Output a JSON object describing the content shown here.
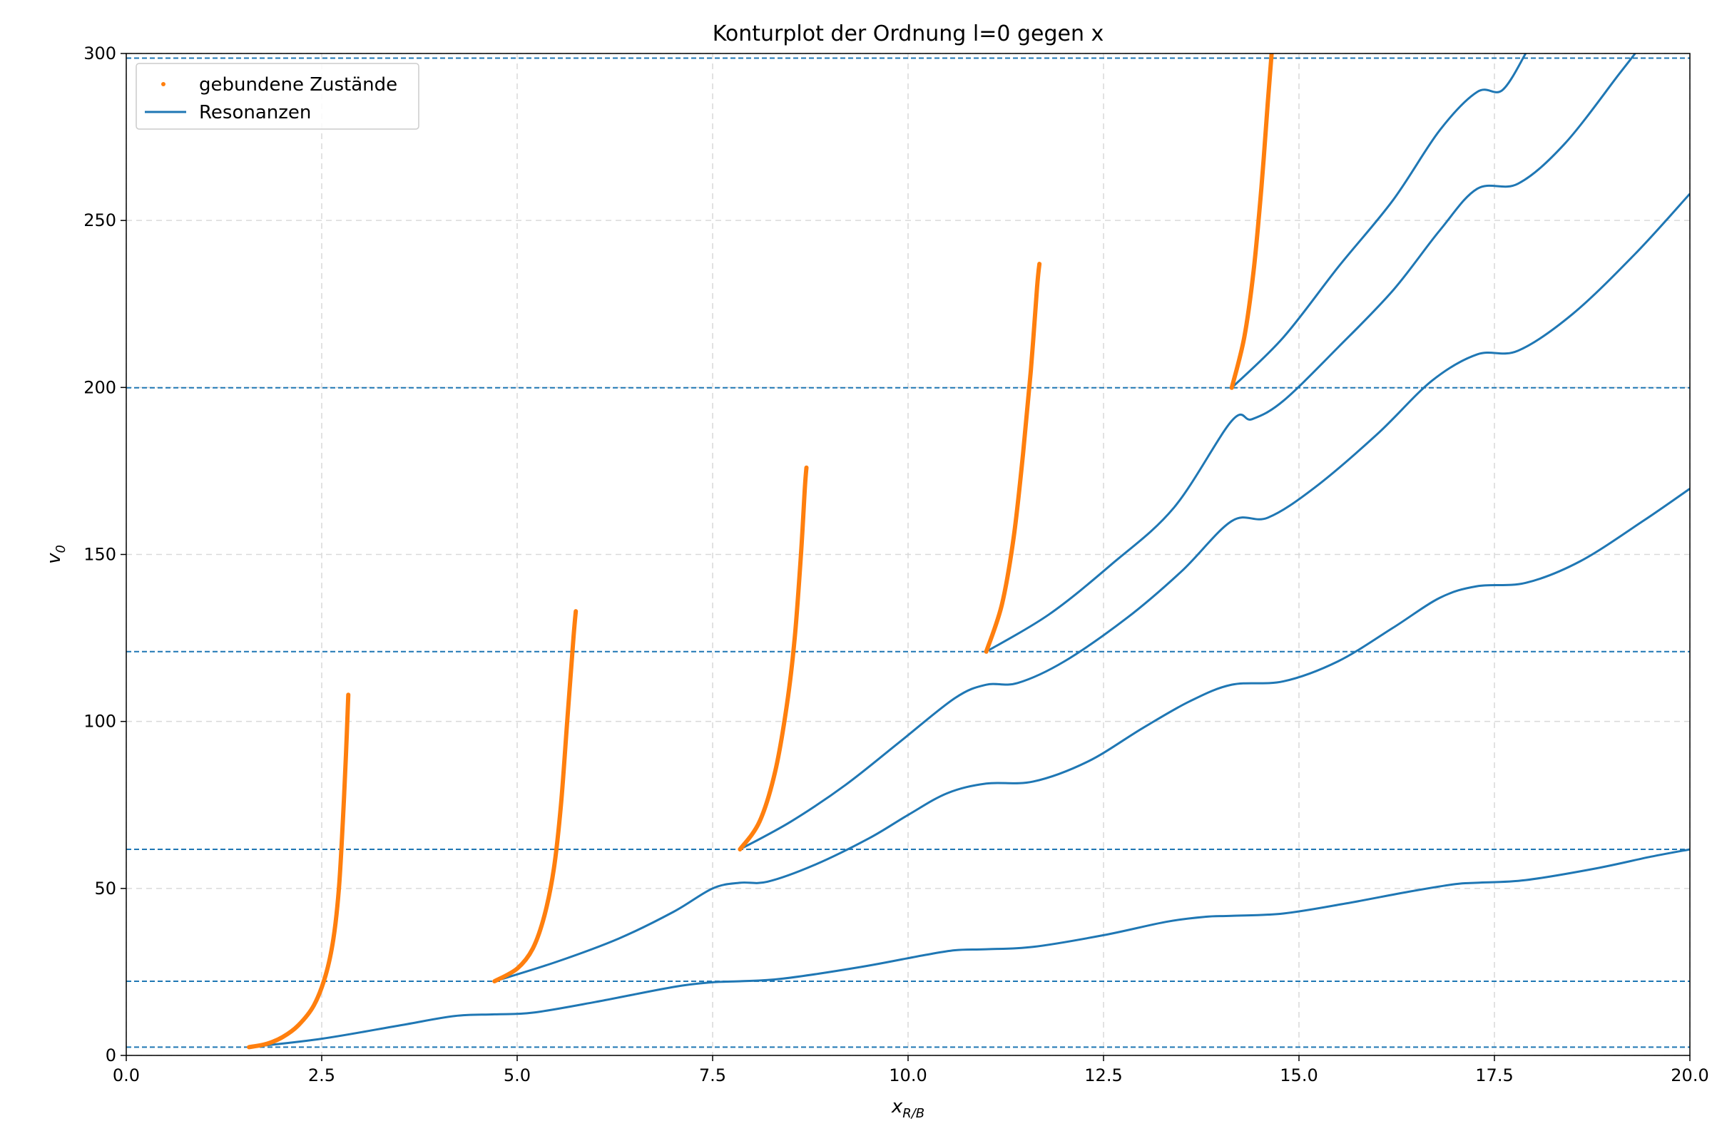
{
  "chart_data": {
    "type": "line",
    "title": "Konturplot der Ordnung l=0 gegen x",
    "xlabel": {
      "base": "x",
      "sub": "R/B"
    },
    "ylabel": {
      "base": "v",
      "sub": "0"
    },
    "xlim": [
      0,
      20
    ],
    "ylim": [
      0,
      300
    ],
    "xticks": [
      "0.0",
      "2.5",
      "5.0",
      "7.5",
      "10.0",
      "12.5",
      "15.0",
      "17.5",
      "20.0"
    ],
    "yticks": [
      "0",
      "50",
      "100",
      "150",
      "200",
      "250",
      "300"
    ],
    "grid": true,
    "legend_position": "top-left",
    "colors": {
      "bound": "#ff7f0e",
      "resonance": "#1f77b4",
      "grid": "#d9d9d9"
    },
    "legend": [
      {
        "label": "gebundene Zustände",
        "style": "marker"
      },
      {
        "label": "Resonanzen",
        "style": "line"
      }
    ],
    "thresholds": [
      2.47,
      22.2,
      61.7,
      120.9,
      199.9,
      298.6
    ],
    "bound_states": [
      {
        "name": "gebundene Zustände",
        "points": [
          [
            1.57,
            2.47
          ],
          [
            1.8,
            3.5
          ],
          [
            2.0,
            5.5
          ],
          [
            2.2,
            9
          ],
          [
            2.4,
            15
          ],
          [
            2.55,
            24
          ],
          [
            2.65,
            35
          ],
          [
            2.72,
            50
          ],
          [
            2.77,
            70
          ],
          [
            2.81,
            90
          ],
          [
            2.84,
            108
          ]
        ]
      },
      {
        "name": "gebundene Zustände",
        "points": [
          [
            4.71,
            22.2
          ],
          [
            5.0,
            26
          ],
          [
            5.2,
            32
          ],
          [
            5.35,
            42
          ],
          [
            5.47,
            56
          ],
          [
            5.56,
            75
          ],
          [
            5.64,
            100
          ],
          [
            5.72,
            125
          ],
          [
            5.75,
            133
          ]
        ]
      },
      {
        "name": "gebundene Zustände",
        "points": [
          [
            7.85,
            61.7
          ],
          [
            8.1,
            70
          ],
          [
            8.3,
            85
          ],
          [
            8.45,
            105
          ],
          [
            8.55,
            125
          ],
          [
            8.63,
            150
          ],
          [
            8.68,
            170
          ],
          [
            8.7,
            176
          ]
        ]
      },
      {
        "name": "gebundene Zustände",
        "points": [
          [
            11.0,
            120.9
          ],
          [
            11.2,
            135
          ],
          [
            11.35,
            155
          ],
          [
            11.47,
            180
          ],
          [
            11.57,
            205
          ],
          [
            11.65,
            230
          ],
          [
            11.68,
            237
          ]
        ]
      },
      {
        "name": "gebundene Zustände",
        "points": [
          [
            14.14,
            199.9
          ],
          [
            14.3,
            215
          ],
          [
            14.42,
            235
          ],
          [
            14.52,
            260
          ],
          [
            14.6,
            285
          ],
          [
            14.65,
            300
          ]
        ]
      }
    ],
    "resonances": [
      {
        "name": "Resonanzen",
        "points": [
          [
            1.57,
            2.47
          ],
          [
            2.5,
            5
          ],
          [
            3.5,
            9
          ],
          [
            4.2,
            11.8
          ],
          [
            4.71,
            12.3
          ],
          [
            5.2,
            12.8
          ],
          [
            6.0,
            16
          ],
          [
            7.0,
            20.5
          ],
          [
            7.5,
            21.9
          ],
          [
            7.85,
            22.2
          ],
          [
            8.4,
            23
          ],
          [
            9.4,
            26.5
          ],
          [
            10.2,
            30
          ],
          [
            10.6,
            31.5
          ],
          [
            11.0,
            31.8
          ],
          [
            11.6,
            32.5
          ],
          [
            12.5,
            36
          ],
          [
            13.3,
            40
          ],
          [
            13.8,
            41.5
          ],
          [
            14.14,
            41.8
          ],
          [
            14.8,
            42.5
          ],
          [
            15.6,
            45.5
          ],
          [
            16.4,
            49
          ],
          [
            17.0,
            51.3
          ],
          [
            17.28,
            51.7
          ],
          [
            17.9,
            52.5
          ],
          [
            18.8,
            56
          ],
          [
            19.5,
            59.5
          ],
          [
            20.0,
            61.7
          ]
        ]
      },
      {
        "name": "Resonanzen",
        "points": [
          [
            4.71,
            22.2
          ],
          [
            5.5,
            28
          ],
          [
            6.3,
            35
          ],
          [
            7.0,
            43
          ],
          [
            7.5,
            50
          ],
          [
            7.85,
            51.7
          ],
          [
            8.2,
            52
          ],
          [
            8.8,
            57
          ],
          [
            9.5,
            65
          ],
          [
            10.0,
            72
          ],
          [
            10.5,
            78.5
          ],
          [
            11.0,
            81.4
          ],
          [
            11.6,
            82
          ],
          [
            12.3,
            88
          ],
          [
            13.0,
            98
          ],
          [
            13.6,
            106
          ],
          [
            14.14,
            111
          ],
          [
            14.8,
            112
          ],
          [
            15.5,
            118
          ],
          [
            16.2,
            128
          ],
          [
            16.8,
            137
          ],
          [
            17.28,
            140.5
          ],
          [
            17.9,
            141.5
          ],
          [
            18.6,
            148
          ],
          [
            19.4,
            160
          ],
          [
            20.0,
            169.7
          ]
        ]
      },
      {
        "name": "Resonanzen",
        "points": [
          [
            7.85,
            61.7
          ],
          [
            8.5,
            70
          ],
          [
            9.2,
            81
          ],
          [
            9.9,
            94
          ],
          [
            10.6,
            107
          ],
          [
            11.0,
            111
          ],
          [
            11.4,
            111.5
          ],
          [
            12.0,
            118
          ],
          [
            12.8,
            131
          ],
          [
            13.5,
            145
          ],
          [
            14.14,
            160
          ],
          [
            14.6,
            161
          ],
          [
            15.2,
            170
          ],
          [
            16.0,
            186
          ],
          [
            16.7,
            202
          ],
          [
            17.28,
            209.9
          ],
          [
            17.8,
            211
          ],
          [
            18.5,
            222
          ],
          [
            19.3,
            240
          ],
          [
            20.0,
            258
          ]
        ]
      },
      {
        "name": "Resonanzen",
        "points": [
          [
            11.0,
            120.9
          ],
          [
            11.8,
            132
          ],
          [
            12.6,
            147
          ],
          [
            13.4,
            164
          ],
          [
            14.14,
            190
          ],
          [
            14.4,
            190.5
          ],
          [
            14.8,
            196
          ],
          [
            15.5,
            212
          ],
          [
            16.2,
            229
          ],
          [
            16.8,
            247
          ],
          [
            17.28,
            259.5
          ],
          [
            17.8,
            261
          ],
          [
            18.4,
            273
          ],
          [
            19.1,
            294
          ],
          [
            19.3,
            300
          ]
        ]
      },
      {
        "name": "Resonanzen",
        "points": [
          [
            14.14,
            199.9
          ],
          [
            14.8,
            215
          ],
          [
            15.5,
            236
          ],
          [
            16.2,
            256
          ],
          [
            16.8,
            277
          ],
          [
            17.28,
            288.5
          ],
          [
            17.6,
            289
          ],
          [
            17.9,
            300
          ]
        ]
      }
    ]
  }
}
